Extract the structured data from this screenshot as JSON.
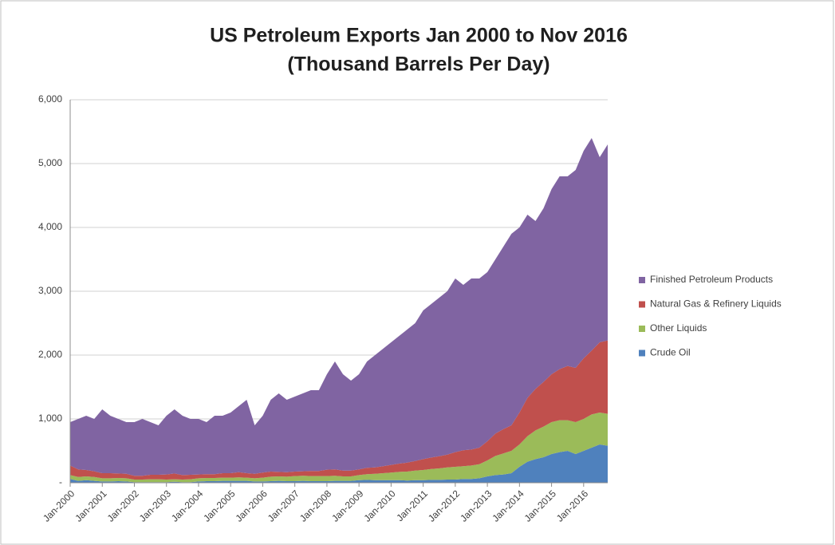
{
  "chart_data": {
    "type": "stacked_area",
    "title": "US Petroleum Exports Jan 2000 to Nov 2016",
    "subtitle": "(Thousand Barrels Per Day)",
    "categories": [
      "Jan-2000",
      null,
      null,
      null,
      "Jan-2001",
      null,
      null,
      null,
      "Jan-2002",
      null,
      null,
      null,
      "Jan-2003",
      null,
      null,
      null,
      "Jan-2004",
      null,
      null,
      null,
      "Jan-2005",
      null,
      null,
      null,
      "Jan-2006",
      null,
      null,
      null,
      "Jan-2007",
      null,
      null,
      null,
      "Jan-2008",
      null,
      null,
      null,
      "Jan-2009",
      null,
      null,
      null,
      "Jan-2010",
      null,
      null,
      null,
      "Jan-2011",
      null,
      null,
      null,
      "Jan-2012",
      null,
      null,
      null,
      "Jan-2013",
      null,
      null,
      null,
      "Jan-2014",
      null,
      null,
      null,
      "Jan-2015",
      null,
      null,
      null,
      "Jan-2016",
      null,
      null,
      null
    ],
    "series": [
      {
        "name": "Crude Oil",
        "color": "#4f81bd",
        "values": [
          60,
          30,
          40,
          30,
          20,
          20,
          25,
          20,
          10,
          10,
          10,
          10,
          10,
          15,
          10,
          10,
          20,
          25,
          25,
          30,
          30,
          30,
          30,
          20,
          20,
          25,
          30,
          25,
          25,
          30,
          25,
          25,
          25,
          30,
          30,
          30,
          40,
          45,
          40,
          40,
          40,
          40,
          35,
          40,
          40,
          45,
          45,
          50,
          50,
          60,
          60,
          70,
          100,
          120,
          130,
          150,
          250,
          330,
          370,
          400,
          450,
          480,
          500,
          450,
          500,
          550,
          600,
          580
        ]
      },
      {
        "name": "Other Liquids",
        "color": "#9bbb59",
        "values": [
          60,
          60,
          60,
          60,
          50,
          50,
          50,
          50,
          40,
          40,
          45,
          45,
          40,
          40,
          40,
          45,
          50,
          50,
          50,
          50,
          50,
          55,
          50,
          50,
          60,
          70,
          70,
          70,
          80,
          80,
          80,
          80,
          80,
          80,
          70,
          70,
          80,
          90,
          100,
          110,
          120,
          130,
          140,
          150,
          160,
          170,
          180,
          190,
          200,
          200,
          210,
          220,
          250,
          300,
          330,
          350,
          350,
          400,
          450,
          480,
          500,
          500,
          480,
          500,
          500,
          520,
          500,
          500
        ]
      },
      {
        "name": "Natural Gas & Refinery Liquids",
        "color": "#c0504d",
        "values": [
          150,
          120,
          100,
          90,
          80,
          80,
          70,
          70,
          60,
          60,
          70,
          70,
          80,
          90,
          70,
          70,
          60,
          60,
          60,
          70,
          70,
          80,
          70,
          70,
          80,
          80,
          70,
          70,
          70,
          70,
          80,
          80,
          100,
          100,
          90,
          90,
          90,
          100,
          100,
          110,
          120,
          130,
          140,
          150,
          170,
          180,
          190,
          200,
          230,
          250,
          250,
          260,
          300,
          350,
          380,
          400,
          500,
          600,
          650,
          700,
          750,
          800,
          850,
          850,
          950,
          1000,
          1100,
          1150
        ]
      },
      {
        "name": "Finished Petroleum Products",
        "color": "#8064a2",
        "values": [
          680,
          790,
          850,
          820,
          1000,
          900,
          855,
          810,
          840,
          890,
          825,
          775,
          920,
          1005,
          930,
          875,
          870,
          815,
          915,
          900,
          950,
          1035,
          1150,
          760,
          890,
          1125,
          1230,
          1135,
          1175,
          1220,
          1265,
          1265,
          1495,
          1690,
          1510,
          1410,
          1490,
          1665,
          1760,
          1840,
          1920,
          2000,
          2085,
          2160,
          2330,
          2405,
          2485,
          2560,
          2720,
          2590,
          2680,
          2650,
          2650,
          2730,
          2860,
          3000,
          2900,
          2870,
          2630,
          2720,
          2900,
          3020,
          2970,
          3100,
          3250,
          3330,
          2900,
          3070
        ]
      }
    ],
    "ylim": [
      0,
      6000
    ],
    "yticks": [
      {
        "value": 0,
        "label": "-"
      },
      {
        "value": 1000,
        "label": "1,000"
      },
      {
        "value": 2000,
        "label": "2,000"
      },
      {
        "value": 3000,
        "label": "3,000"
      },
      {
        "value": 4000,
        "label": "4,000"
      },
      {
        "value": 5000,
        "label": "5,000"
      },
      {
        "value": 6000,
        "label": "6,000"
      }
    ],
    "grid": true,
    "legend": "right"
  }
}
